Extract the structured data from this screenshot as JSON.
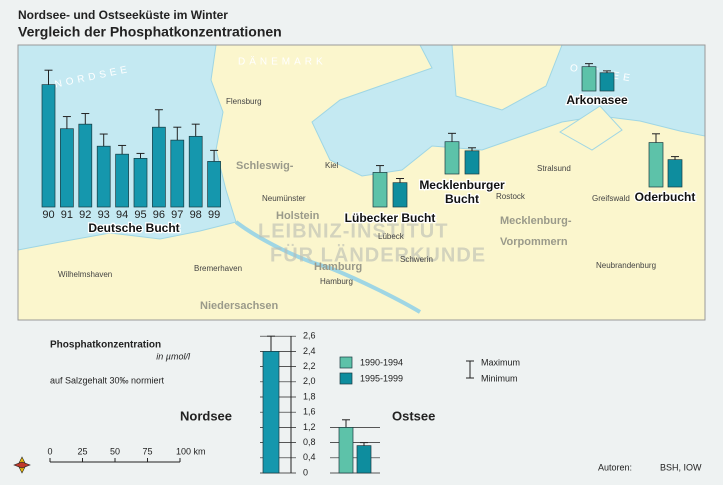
{
  "header": {
    "title": "Nordsee- und Ostseeküste im Winter",
    "subtitle": "Vergleich der Phosphatkonzentrationen"
  },
  "map_labels": {
    "sea_north": "NORDSEE",
    "sea_baltic": "OSTSEE",
    "country": "DÄNEMARK",
    "places": [
      "Flensburg",
      "Kiel",
      "Neumünster",
      "Lübeck",
      "Rostock",
      "Stralsund",
      "Greifswald",
      "Schwerin",
      "Hamburg",
      "Bremerhaven",
      "Wilhelmshaven",
      "Neubrandenburg"
    ],
    "regions": [
      "Schleswig-",
      "Holstein",
      "Mecklenburg-",
      "Vorpommern",
      "Hamburg",
      "Niedersachsen"
    ],
    "watermark": [
      "LEIBNIZ-INSTITUT",
      "FÜR LÄNDERKUNDE"
    ]
  },
  "legend": {
    "series": [
      {
        "name": "1990-1994",
        "color": "#5dc2a9"
      },
      {
        "name": "1995-1999",
        "color": "#0e8d9e"
      }
    ],
    "maximum": "Maximum",
    "minimum": "Minimum"
  },
  "nordsee_color": "#1597ad",
  "regions": [
    {
      "name": [
        "Deutsche Bucht"
      ],
      "categories": [
        "90",
        "91",
        "92",
        "93",
        "94",
        "95",
        "96",
        "97",
        "98",
        "99"
      ],
      "values": [
        2.41,
        1.83,
        1.89,
        1.6,
        1.39,
        1.28,
        1.85,
        1.68,
        1.73,
        1.2
      ],
      "maxima": [
        2.6,
        1.99,
        2.03,
        1.76,
        1.61,
        1.41,
        2.08,
        1.85,
        1.89,
        1.49
      ]
    },
    {
      "name": [
        "Lübecker Bucht"
      ],
      "values": [
        0.91,
        0.64
      ],
      "maxima": [
        1.09,
        0.75
      ]
    },
    {
      "name": [
        "Mecklenburger",
        "Bucht"
      ],
      "values": [
        0.85,
        0.61
      ],
      "maxima": [
        1.07,
        0.69
      ]
    },
    {
      "name": [
        "Arkonasee"
      ],
      "values": [
        0.64,
        0.48
      ],
      "maxima": [
        0.72,
        0.53
      ]
    },
    {
      "name": [
        "Oderbucht"
      ],
      "values": [
        1.17,
        0.72
      ],
      "maxima": [
        1.4,
        0.8
      ]
    }
  ],
  "reference": {
    "title": "Phosphatkonzentration",
    "unit": "in µmol/l",
    "note": "auf Salzgehalt 30‰ normiert",
    "ylim": [
      0,
      2.6
    ],
    "yticks": [
      0,
      {
        "value": 0.4,
        "label": "0,4"
      },
      {
        "value": 0.8,
        "label": "0,8"
      },
      {
        "value": 1.2,
        "label": "1,2"
      },
      {
        "value": 1.6,
        "label": "1,6"
      },
      {
        "value": 1.8,
        "label": "1,8"
      },
      {
        "value": 2.0,
        "label": "2,0"
      },
      {
        "value": 2.2,
        "label": "2,2"
      },
      {
        "value": 2.4,
        "label": "2,4"
      },
      {
        "value": 2.6,
        "label": "2,6"
      }
    ],
    "nordsee": {
      "label": "Nordsee",
      "value": 2.4,
      "max": 2.6
    },
    "ostsee": {
      "label": "Ostsee",
      "values": [
        1.2,
        0.72
      ],
      "maxima": [
        1.4,
        0.8
      ]
    }
  },
  "scale_bar": {
    "ticks": [
      0,
      25,
      50,
      75,
      {
        "value": 100,
        "label": "100 km"
      }
    ]
  },
  "footer": {
    "authors_label": "Autoren:",
    "authors": "BSH, IOW"
  }
}
